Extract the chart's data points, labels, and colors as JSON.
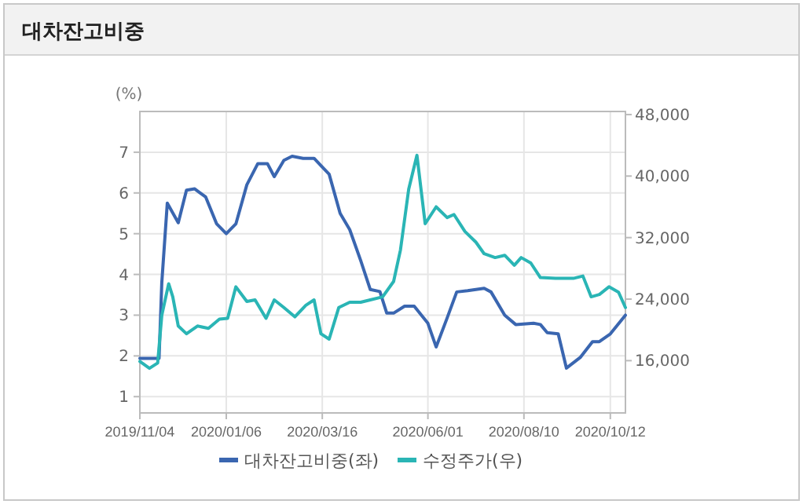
{
  "chart_data": {
    "type": "line",
    "title": "대차잔고비중",
    "ylabel": "(%)",
    "xlim": [
      "2019-11-04",
      "2020-10-23"
    ],
    "xticks": [
      {
        "value": "2019-11-04",
        "label": "2019/11/04"
      },
      {
        "value": "2020-01-06",
        "label": "2020/01/06"
      },
      {
        "value": "2020-03-16",
        "label": "2020/03/16"
      },
      {
        "value": "2020-06-01",
        "label": "2020/06/01"
      },
      {
        "value": "2020-08-10",
        "label": "2020/08/10"
      },
      {
        "value": "2020-10-12",
        "label": "2020/10/12"
      }
    ],
    "ylim": [
      0.6,
      8
    ],
    "yticks": [
      1,
      2,
      3,
      4,
      5,
      6,
      7
    ],
    "y2lim": [
      9200,
      48400
    ],
    "y2ticks": [
      {
        "value": 16000,
        "label": "16,000"
      },
      {
        "value": 24000,
        "label": "24,000"
      },
      {
        "value": 32000,
        "label": "32,000"
      },
      {
        "value": 40000,
        "label": "40,000"
      },
      {
        "value": 48000,
        "label": "48,000"
      }
    ],
    "grid": true,
    "legend": "bottom",
    "line_style": "solid",
    "series": [
      {
        "name": "대차잔고비중(좌)",
        "color": "#3a66b0",
        "x": [
          "2019-11-04",
          "2019-11-18",
          "2019-11-20",
          "2019-11-24",
          "2019-12-02",
          "2019-12-08",
          "2019-12-14",
          "2019-12-22",
          "2019-12-30",
          "2020-01-06",
          "2020-01-13",
          "2020-01-21",
          "2020-01-29",
          "2020-02-05",
          "2020-02-10",
          "2020-02-17",
          "2020-02-23",
          "2020-03-02",
          "2020-03-10",
          "2020-03-17",
          "2020-03-21",
          "2020-03-29",
          "2020-04-05",
          "2020-04-13",
          "2020-04-20",
          "2020-04-27",
          "2020-05-02",
          "2020-05-07",
          "2020-05-15",
          "2020-05-22",
          "2020-06-01",
          "2020-06-07",
          "2020-06-15",
          "2020-06-22",
          "2020-06-30",
          "2020-07-12",
          "2020-07-17",
          "2020-07-27",
          "2020-08-04",
          "2020-08-17",
          "2020-08-22",
          "2020-08-27",
          "2020-09-04",
          "2020-09-10",
          "2020-09-20",
          "2020-09-29",
          "2020-10-04",
          "2020-10-12",
          "2020-10-23"
        ],
        "values": [
          1.94,
          1.94,
          3.8,
          5.75,
          5.27,
          6.07,
          6.1,
          5.9,
          5.24,
          5.0,
          5.24,
          6.2,
          6.72,
          6.72,
          6.4,
          6.8,
          6.9,
          6.85,
          6.85,
          6.6,
          6.46,
          5.5,
          5.1,
          4.34,
          3.63,
          3.58,
          3.05,
          3.05,
          3.22,
          3.22,
          2.8,
          2.22,
          2.93,
          3.57,
          3.6,
          3.66,
          3.57,
          3.0,
          2.77,
          2.8,
          2.77,
          2.57,
          2.54,
          1.7,
          1.96,
          2.35,
          2.35,
          2.54,
          3.0
        ]
      },
      {
        "name": "수정주가(우)",
        "color": "#2ab5b5",
        "axis": "y2",
        "x": [
          "2019-11-04",
          "2019-11-11",
          "2019-11-17",
          "2019-11-20",
          "2019-11-25",
          "2019-11-28",
          "2019-12-02",
          "2019-12-08",
          "2019-12-16",
          "2019-12-24",
          "2020-01-01",
          "2020-01-07",
          "2020-01-13",
          "2020-01-21",
          "2020-01-27",
          "2020-02-04",
          "2020-02-10",
          "2020-02-17",
          "2020-02-25",
          "2020-03-04",
          "2020-03-10",
          "2020-03-15",
          "2020-03-21",
          "2020-03-28",
          "2020-04-05",
          "2020-04-13",
          "2020-04-20",
          "2020-04-29",
          "2020-05-07",
          "2020-05-12",
          "2020-05-18",
          "2020-05-24",
          "2020-05-30",
          "2020-06-07",
          "2020-06-15",
          "2020-06-20",
          "2020-06-28",
          "2020-07-06",
          "2020-07-12",
          "2020-07-20",
          "2020-07-27",
          "2020-08-03",
          "2020-08-08",
          "2020-08-15",
          "2020-08-22",
          "2020-09-02",
          "2020-09-15",
          "2020-09-22",
          "2020-09-28",
          "2020-10-04",
          "2020-10-11",
          "2020-10-18",
          "2020-10-23"
        ],
        "values": [
          15900,
          15000,
          15700,
          21900,
          26000,
          24300,
          20500,
          19500,
          20500,
          20200,
          21400,
          21500,
          25600,
          23700,
          23900,
          21500,
          23900,
          22900,
          21700,
          23200,
          23900,
          19500,
          18800,
          22900,
          23600,
          23600,
          23900,
          24300,
          26300,
          30400,
          38300,
          42700,
          33800,
          36000,
          34600,
          35000,
          32800,
          31400,
          29900,
          29400,
          29700,
          28400,
          29400,
          28700,
          26800,
          26700,
          26700,
          27000,
          24300,
          24600,
          25600,
          24900,
          22900
        ]
      }
    ]
  }
}
